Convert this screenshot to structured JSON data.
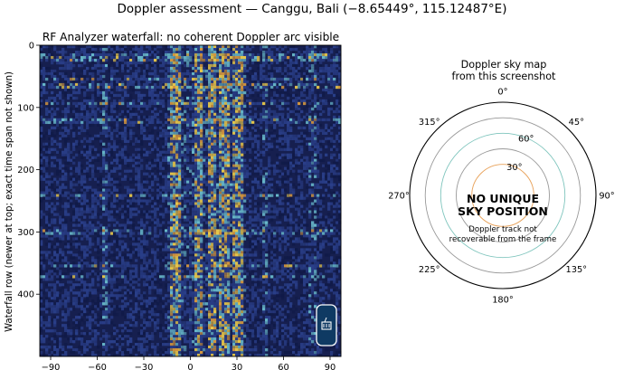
{
  "suptitle": "Doppler assessment — Canggu, Bali (−8.65449°, 115.12487°E)",
  "colors": {
    "waterfall_bg": "#161f4f",
    "noise_dark": "#101a48",
    "noise_mid": "#2a3f8a",
    "noise_cyan": "#67b7c9",
    "noise_yellow": "#e8c84a",
    "noise_orange": "#d6973e",
    "badge_fill": "#0f3a63",
    "ring_orange": "#e8a25a",
    "ring_teal": "#7fc5bd",
    "ring_gray": "#999999"
  },
  "chart_data": [
    {
      "type": "heatmap",
      "title": "RF Analyzer waterfall: no coherent Doppler arc visible",
      "xlabel": "",
      "ylabel": "Waterfall row (newer at top; exact time span not shown)",
      "xlim": [
        -97,
        97
      ],
      "ylim": [
        500,
        0
      ],
      "x_ticks": [
        -90,
        -60,
        -30,
        0,
        30,
        60,
        90
      ],
      "y_ticks": [
        0,
        100,
        200,
        300,
        400
      ],
      "grid": false,
      "badge_icon": "antenna-icon",
      "noise": {
        "bright_columns": [
          -10,
          5,
          14,
          22,
          31
        ],
        "dim_columns": [
          -55,
          48,
          78
        ],
        "bright_rows": [
          17,
          23,
          54,
          65,
          94,
          122,
          241,
          300,
          355,
          372
        ]
      }
    },
    {
      "type": "polar",
      "title": "Doppler sky map\nfrom this screenshot",
      "azimuth_labels": [
        "0°",
        "45°",
        "90°",
        "135°",
        "180°",
        "225°",
        "270°",
        "315°"
      ],
      "elevation_labels": [
        "30°",
        "60°"
      ],
      "headline": [
        "NO UNIQUE",
        "SKY POSITION"
      ],
      "note": [
        "Doppler track not",
        "recoverable from the frame"
      ]
    }
  ]
}
